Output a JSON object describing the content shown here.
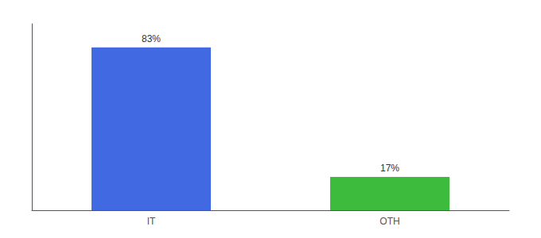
{
  "chart_data": {
    "type": "bar",
    "categories": [
      "IT",
      "OTH"
    ],
    "values": [
      83,
      17
    ],
    "value_labels": [
      "83%",
      "17%"
    ],
    "colors": [
      "#4169e1",
      "#3dbb3d"
    ],
    "ylim": [
      0,
      95
    ],
    "data_labels": true,
    "tick_labels": "x",
    "grid": false
  }
}
